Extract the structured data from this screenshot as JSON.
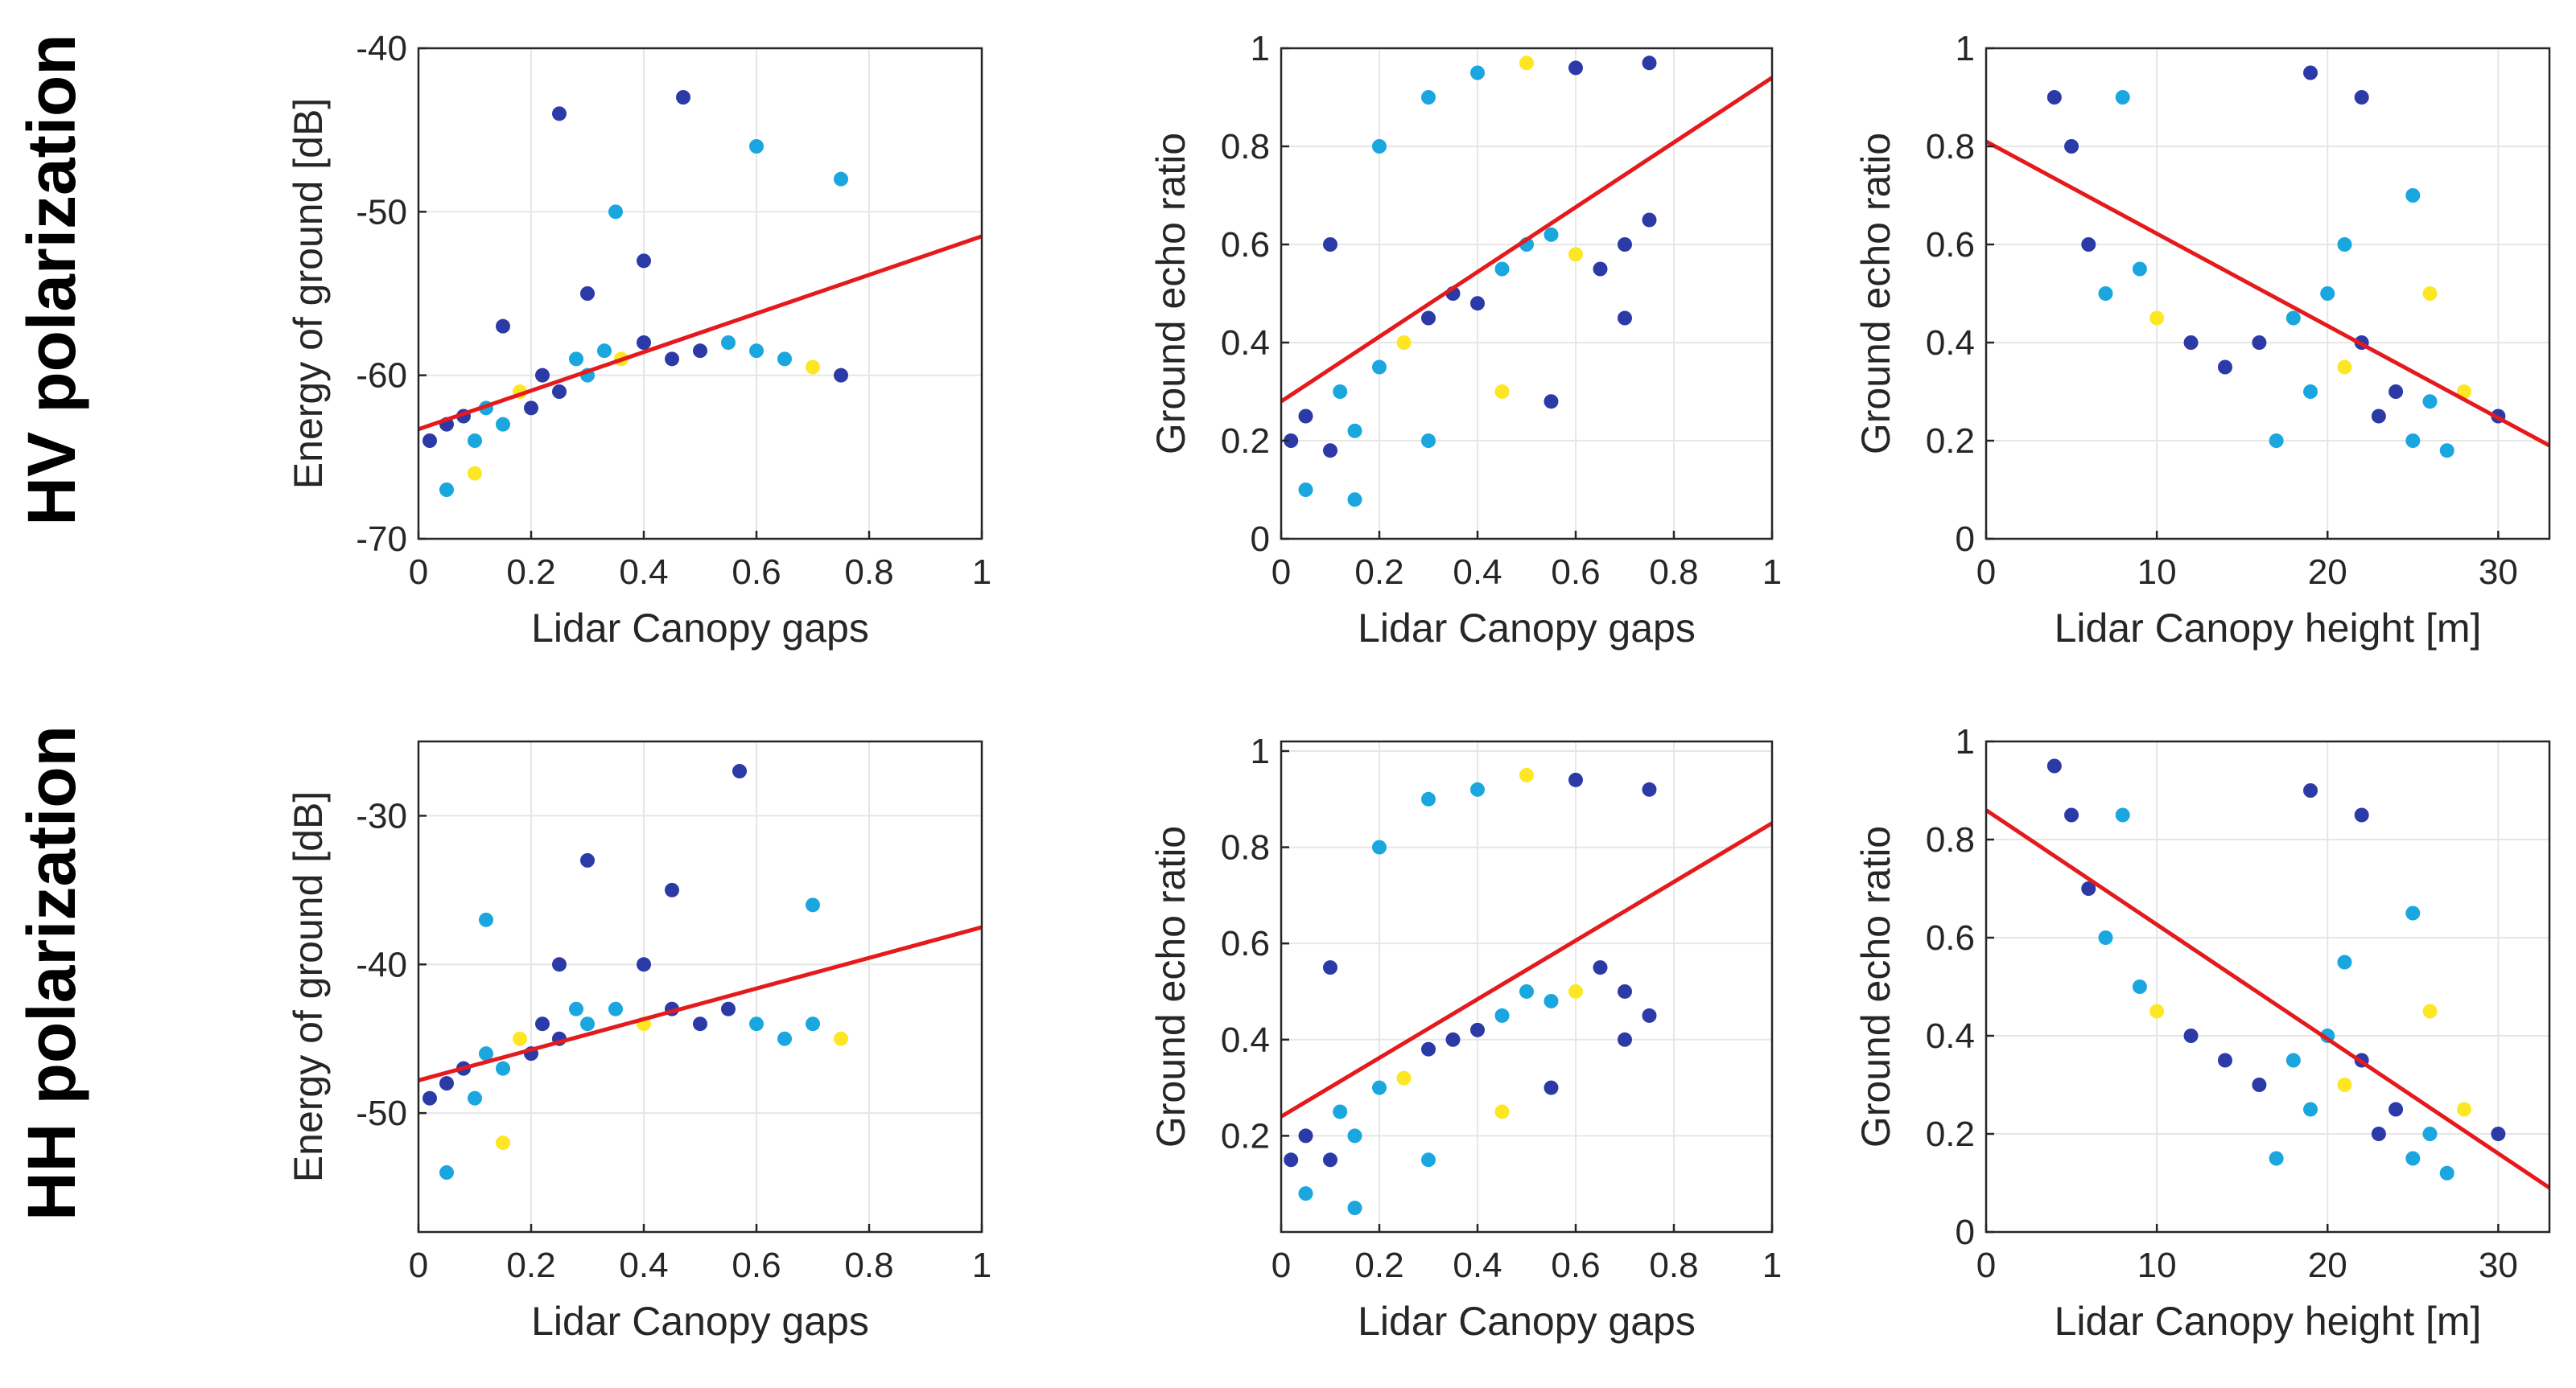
{
  "row_labels": {
    "hv": "HV polarization",
    "hh": "HH polarization"
  },
  "colors": {
    "low_density": "#2c3aa8",
    "mid_density": "#1aa6df",
    "high_density": "#fde725",
    "fit_line": "#e41a1c",
    "grid": "#e6e6e6",
    "axis": "#262626"
  },
  "chart_data": [
    {
      "id": "hv-energy",
      "type": "scatter",
      "title": "",
      "xlabel": "Lidar Canopy gaps",
      "ylabel": "Energy of ground [dB]",
      "xlim": [
        0,
        1
      ],
      "ylim": [
        -70,
        -40
      ],
      "xticks": [
        0,
        0.2,
        0.4,
        0.6,
        0.8,
        1
      ],
      "xtick_labels": [
        "0",
        "0.2",
        "0.4",
        "0.6",
        "0.8",
        "1"
      ],
      "yticks": [
        -70,
        -60,
        -50,
        -40
      ],
      "ytick_labels": [
        "-70",
        "-60",
        "-50",
        "-40"
      ],
      "fit_line": [
        [
          0,
          -63.3
        ],
        [
          1,
          -51.5
        ]
      ],
      "points": [
        [
          0.02,
          -64
        ],
        [
          0.05,
          -63
        ],
        [
          0.08,
          -62.5
        ],
        [
          0.1,
          -64
        ],
        [
          0.12,
          -62
        ],
        [
          0.15,
          -63
        ],
        [
          0.18,
          -61
        ],
        [
          0.2,
          -62
        ],
        [
          0.22,
          -60
        ],
        [
          0.25,
          -61
        ],
        [
          0.28,
          -59
        ],
        [
          0.3,
          -60
        ],
        [
          0.33,
          -58.5
        ],
        [
          0.36,
          -59
        ],
        [
          0.4,
          -58
        ],
        [
          0.45,
          -59
        ],
        [
          0.5,
          -58.5
        ],
        [
          0.55,
          -58
        ],
        [
          0.6,
          -58.5
        ],
        [
          0.65,
          -59
        ],
        [
          0.7,
          -59.5
        ],
        [
          0.75,
          -60
        ],
        [
          0.25,
          -44
        ],
        [
          0.47,
          -43
        ],
        [
          0.6,
          -46
        ],
        [
          0.75,
          -48
        ],
        [
          0.05,
          -67
        ],
        [
          0.1,
          -66
        ],
        [
          0.3,
          -55
        ],
        [
          0.4,
          -53
        ],
        [
          0.15,
          -57
        ],
        [
          0.35,
          -50
        ]
      ]
    },
    {
      "id": "hv-ratio-gaps",
      "type": "scatter",
      "title": "",
      "xlabel": "Lidar Canopy gaps",
      "ylabel": "Ground echo ratio",
      "xlim": [
        0,
        1
      ],
      "ylim": [
        0,
        1
      ],
      "xticks": [
        0,
        0.2,
        0.4,
        0.6,
        0.8,
        1
      ],
      "xtick_labels": [
        "0",
        "0.2",
        "0.4",
        "0.6",
        "0.8",
        "1"
      ],
      "yticks": [
        0,
        0.2,
        0.4,
        0.6,
        0.8,
        1
      ],
      "ytick_labels": [
        "0",
        "0.2",
        "0.4",
        "0.6",
        "0.8",
        "1"
      ],
      "fit_line": [
        [
          0,
          0.28
        ],
        [
          1,
          0.94
        ]
      ],
      "points": [
        [
          0.02,
          0.2
        ],
        [
          0.05,
          0.25
        ],
        [
          0.1,
          0.18
        ],
        [
          0.12,
          0.3
        ],
        [
          0.15,
          0.22
        ],
        [
          0.2,
          0.35
        ],
        [
          0.25,
          0.4
        ],
        [
          0.3,
          0.45
        ],
        [
          0.35,
          0.5
        ],
        [
          0.4,
          0.48
        ],
        [
          0.45,
          0.55
        ],
        [
          0.5,
          0.6
        ],
        [
          0.55,
          0.62
        ],
        [
          0.6,
          0.58
        ],
        [
          0.65,
          0.55
        ],
        [
          0.7,
          0.6
        ],
        [
          0.75,
          0.65
        ],
        [
          0.2,
          0.8
        ],
        [
          0.3,
          0.9
        ],
        [
          0.4,
          0.95
        ],
        [
          0.5,
          0.97
        ],
        [
          0.6,
          0.96
        ],
        [
          0.75,
          0.97
        ],
        [
          0.1,
          0.6
        ],
        [
          0.05,
          0.1
        ],
        [
          0.15,
          0.08
        ],
        [
          0.3,
          0.2
        ],
        [
          0.45,
          0.3
        ],
        [
          0.55,
          0.28
        ],
        [
          0.7,
          0.45
        ]
      ]
    },
    {
      "id": "hv-ratio-height",
      "type": "scatter",
      "title": "",
      "xlabel": "Lidar Canopy height [m]",
      "ylabel": "Ground echo ratio",
      "xlim": [
        0,
        33
      ],
      "ylim": [
        0,
        1
      ],
      "xticks": [
        0,
        10,
        20,
        30
      ],
      "xtick_labels": [
        "0",
        "10",
        "20",
        "30"
      ],
      "yticks": [
        0,
        0.2,
        0.4,
        0.6,
        0.8,
        1
      ],
      "ytick_labels": [
        "0",
        "0.2",
        "0.4",
        "0.6",
        "0.8",
        "1"
      ],
      "fit_line": [
        [
          0,
          0.81
        ],
        [
          33,
          0.19
        ]
      ],
      "points": [
        [
          4,
          0.9
        ],
        [
          5,
          0.8
        ],
        [
          6,
          0.6
        ],
        [
          7,
          0.5
        ],
        [
          8,
          0.9
        ],
        [
          9,
          0.55
        ],
        [
          10,
          0.45
        ],
        [
          12,
          0.4
        ],
        [
          14,
          0.35
        ],
        [
          16,
          0.4
        ],
        [
          18,
          0.45
        ],
        [
          19,
          0.3
        ],
        [
          20,
          0.5
        ],
        [
          21,
          0.35
        ],
        [
          22,
          0.4
        ],
        [
          23,
          0.25
        ],
        [
          24,
          0.3
        ],
        [
          25,
          0.2
        ],
        [
          26,
          0.28
        ],
        [
          27,
          0.18
        ],
        [
          28,
          0.3
        ],
        [
          30,
          0.25
        ],
        [
          19,
          0.95
        ],
        [
          22,
          0.9
        ],
        [
          25,
          0.7
        ],
        [
          17,
          0.2
        ],
        [
          21,
          0.6
        ],
        [
          26,
          0.5
        ]
      ]
    },
    {
      "id": "hh-energy",
      "type": "scatter",
      "title": "",
      "xlabel": "Lidar Canopy gaps",
      "ylabel": "Energy of ground [dB]",
      "xlim": [
        0,
        1
      ],
      "ylim": [
        -58,
        -25
      ],
      "xticks": [
        0,
        0.2,
        0.4,
        0.6,
        0.8,
        1
      ],
      "xtick_labels": [
        "0",
        "0.2",
        "0.4",
        "0.6",
        "0.8",
        "1"
      ],
      "yticks": [
        -50,
        -40,
        -30
      ],
      "ytick_labels": [
        "-50",
        "-40",
        "-30"
      ],
      "fit_line": [
        [
          0,
          -47.8
        ],
        [
          1,
          -37.5
        ]
      ],
      "points": [
        [
          0.02,
          -49
        ],
        [
          0.05,
          -48
        ],
        [
          0.08,
          -47
        ],
        [
          0.1,
          -49
        ],
        [
          0.12,
          -46
        ],
        [
          0.15,
          -47
        ],
        [
          0.18,
          -45
        ],
        [
          0.2,
          -46
        ],
        [
          0.22,
          -44
        ],
        [
          0.25,
          -45
        ],
        [
          0.28,
          -43
        ],
        [
          0.3,
          -44
        ],
        [
          0.35,
          -43
        ],
        [
          0.4,
          -44
        ],
        [
          0.45,
          -43
        ],
        [
          0.5,
          -44
        ],
        [
          0.55,
          -43
        ],
        [
          0.6,
          -44
        ],
        [
          0.65,
          -45
        ],
        [
          0.7,
          -44
        ],
        [
          0.75,
          -45
        ],
        [
          0.57,
          -27
        ],
        [
          0.3,
          -33
        ],
        [
          0.45,
          -35
        ],
        [
          0.7,
          -36
        ],
        [
          0.12,
          -37
        ],
        [
          0.05,
          -54
        ],
        [
          0.15,
          -52
        ],
        [
          0.4,
          -40
        ],
        [
          0.25,
          -40
        ]
      ]
    },
    {
      "id": "hh-ratio-gaps",
      "type": "scatter",
      "title": "",
      "xlabel": "Lidar Canopy gaps",
      "ylabel": "Ground echo ratio",
      "xlim": [
        0,
        1
      ],
      "ylim": [
        0,
        1.02
      ],
      "xticks": [
        0,
        0.2,
        0.4,
        0.6,
        0.8,
        1
      ],
      "xtick_labels": [
        "0",
        "0.2",
        "0.4",
        "0.6",
        "0.8",
        "1"
      ],
      "yticks": [
        0.2,
        0.4,
        0.6,
        0.8,
        1
      ],
      "ytick_labels": [
        "0.2",
        "0.4",
        "0.6",
        "0.8",
        "1"
      ],
      "fit_line": [
        [
          0,
          0.24
        ],
        [
          1,
          0.85
        ]
      ],
      "points": [
        [
          0.02,
          0.15
        ],
        [
          0.05,
          0.2
        ],
        [
          0.1,
          0.15
        ],
        [
          0.12,
          0.25
        ],
        [
          0.15,
          0.2
        ],
        [
          0.2,
          0.3
        ],
        [
          0.25,
          0.32
        ],
        [
          0.3,
          0.38
        ],
        [
          0.35,
          0.4
        ],
        [
          0.4,
          0.42
        ],
        [
          0.45,
          0.45
        ],
        [
          0.5,
          0.5
        ],
        [
          0.55,
          0.48
        ],
        [
          0.6,
          0.5
        ],
        [
          0.65,
          0.55
        ],
        [
          0.7,
          0.5
        ],
        [
          0.75,
          0.45
        ],
        [
          0.2,
          0.8
        ],
        [
          0.3,
          0.9
        ],
        [
          0.4,
          0.92
        ],
        [
          0.5,
          0.95
        ],
        [
          0.6,
          0.94
        ],
        [
          0.75,
          0.92
        ],
        [
          0.1,
          0.55
        ],
        [
          0.05,
          0.08
        ],
        [
          0.15,
          0.05
        ],
        [
          0.3,
          0.15
        ],
        [
          0.45,
          0.25
        ],
        [
          0.55,
          0.3
        ],
        [
          0.7,
          0.4
        ]
      ]
    },
    {
      "id": "hh-ratio-height",
      "type": "scatter",
      "title": "",
      "xlabel": "Lidar Canopy height [m]",
      "ylabel": "Ground echo ratio",
      "xlim": [
        0,
        33
      ],
      "ylim": [
        0,
        1
      ],
      "xticks": [
        0,
        10,
        20,
        30
      ],
      "xtick_labels": [
        "0",
        "10",
        "20",
        "30"
      ],
      "yticks": [
        0,
        0.2,
        0.4,
        0.6,
        0.8,
        1
      ],
      "ytick_labels": [
        "0",
        "0.2",
        "0.4",
        "0.6",
        "0.8",
        "1"
      ],
      "fit_line": [
        [
          0,
          0.86
        ],
        [
          33,
          0.09
        ]
      ],
      "points": [
        [
          4,
          0.95
        ],
        [
          5,
          0.85
        ],
        [
          6,
          0.7
        ],
        [
          7,
          0.6
        ],
        [
          8,
          0.85
        ],
        [
          9,
          0.5
        ],
        [
          10,
          0.45
        ],
        [
          12,
          0.4
        ],
        [
          14,
          0.35
        ],
        [
          16,
          0.3
        ],
        [
          18,
          0.35
        ],
        [
          19,
          0.25
        ],
        [
          20,
          0.4
        ],
        [
          21,
          0.3
        ],
        [
          22,
          0.35
        ],
        [
          23,
          0.2
        ],
        [
          24,
          0.25
        ],
        [
          25,
          0.15
        ],
        [
          26,
          0.2
        ],
        [
          27,
          0.12
        ],
        [
          28,
          0.25
        ],
        [
          30,
          0.2
        ],
        [
          19,
          0.9
        ],
        [
          22,
          0.85
        ],
        [
          25,
          0.65
        ],
        [
          17,
          0.15
        ],
        [
          21,
          0.55
        ],
        [
          26,
          0.45
        ]
      ]
    }
  ]
}
